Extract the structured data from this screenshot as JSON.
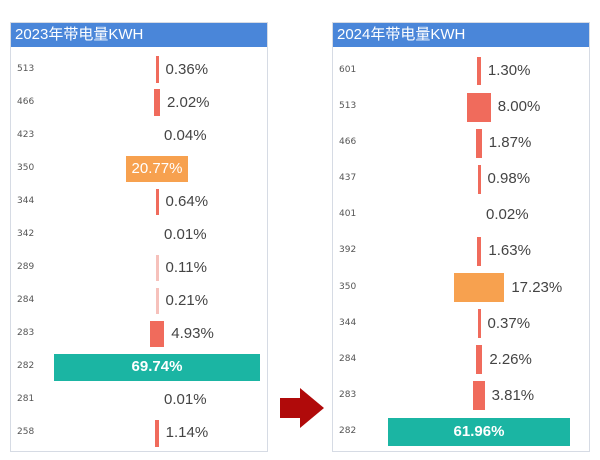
{
  "colors": {
    "header": "#4a86d9",
    "default_bar": "#f06b5c",
    "orange_bar": "#f7a14f",
    "teal_bar": "#1bb5a3",
    "light_bar": "#f6c1bb",
    "arrow": "#b00a0a"
  },
  "arrow_icon": "right-arrow-icon",
  "chart_data": [
    {
      "type": "bar",
      "title": "2023年带电量KWH",
      "categories": [
        "513",
        "466",
        "423",
        "350",
        "344",
        "342",
        "289",
        "284",
        "283",
        "282",
        "281",
        "258"
      ],
      "values": [
        0.36,
        2.02,
        0.04,
        20.77,
        0.64,
        0.01,
        0.11,
        0.21,
        4.93,
        69.74,
        0.01,
        1.14
      ],
      "labels": [
        "0.36%",
        "2.02%",
        "0.04%",
        "20.77%",
        "0.64%",
        "0.01%",
        "0.11%",
        "0.21%",
        "4.93%",
        "69.74%",
        "0.01%",
        "1.14%"
      ],
      "highlight": {
        "350": "orange",
        "282": "teal"
      }
    },
    {
      "type": "bar",
      "title": "2024年带电量KWH",
      "categories": [
        "601",
        "513",
        "466",
        "437",
        "401",
        "392",
        "350",
        "344",
        "284",
        "283",
        "282"
      ],
      "values": [
        1.3,
        8.0,
        1.87,
        0.98,
        0.02,
        1.63,
        17.23,
        0.37,
        2.26,
        3.81,
        61.96
      ],
      "labels": [
        "1.30%",
        "8.00%",
        "1.87%",
        "0.98%",
        "0.02%",
        "1.63%",
        "17.23%",
        "0.37%",
        "2.26%",
        "3.81%",
        "61.96%"
      ],
      "highlight": {
        "350": "orange",
        "282": "teal"
      }
    }
  ]
}
